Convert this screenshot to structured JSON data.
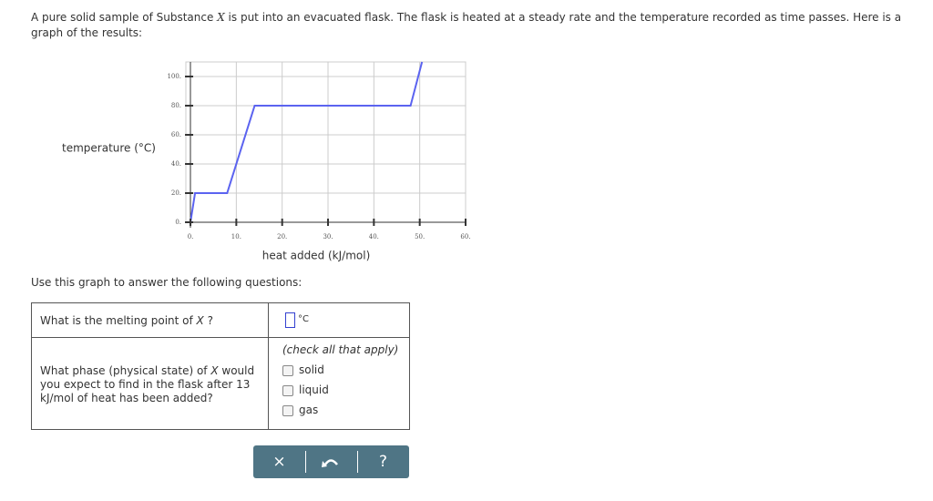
{
  "intro": {
    "before": "A pure solid sample of Substance ",
    "variable": "X",
    "after": " is put into an evacuated flask. The flask is heated at a steady rate and the temperature recorded as time passes. Here is a graph of the results:"
  },
  "chart_data": {
    "type": "line",
    "xlabel": "heat added (kJ/mol)",
    "ylabel": "temperature (°C)",
    "x": [
      0,
      1,
      8,
      14,
      48,
      50.5
    ],
    "values": [
      0,
      20,
      20,
      80,
      80,
      110
    ],
    "color": "#5b63f0",
    "xlim": [
      -1,
      60
    ],
    "ylim": [
      0,
      110
    ],
    "xticks": [
      {
        "value": 0,
        "label": "0."
      },
      {
        "value": 10,
        "label": "10."
      },
      {
        "value": 20,
        "label": "20."
      },
      {
        "value": 30,
        "label": "30."
      },
      {
        "value": 40,
        "label": "40."
      },
      {
        "value": 50,
        "label": "50."
      },
      {
        "value": 60,
        "label": "60."
      }
    ],
    "yticks": [
      {
        "value": 0,
        "label": "0."
      },
      {
        "value": 20,
        "label": "20."
      },
      {
        "value": 40,
        "label": "40."
      },
      {
        "value": 60,
        "label": "60."
      },
      {
        "value": 80,
        "label": "80."
      },
      {
        "value": 100,
        "label": "100."
      }
    ],
    "grid": true
  },
  "instruction": "Use this graph to answer the following questions:",
  "questions": [
    {
      "before": "What is the melting point of ",
      "variable": "X",
      "after": " ?",
      "unit": "°C"
    },
    {
      "before": "What phase (physical state) of ",
      "variable": "X",
      "after": " would you expect to find in the flask after 13 kJ/mol of heat has been added?",
      "hint": "(check all that apply)",
      "options": [
        "solid",
        "liquid",
        "gas"
      ]
    }
  ],
  "buttons": {
    "clear": "×",
    "help": "?"
  }
}
